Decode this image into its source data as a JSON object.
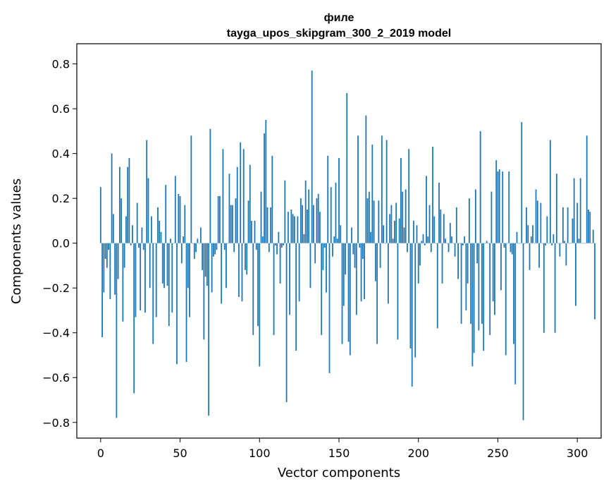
{
  "chart_data": {
    "type": "bar",
    "title_line1": "филе",
    "title_line2": "tayga_upos_skipgram_300_2_2019 model",
    "xlabel": "Vector components",
    "ylabel": "Components values",
    "xlim": [
      -15,
      315
    ],
    "ylim": [
      -0.87,
      0.89
    ],
    "xticks": [
      0,
      50,
      100,
      150,
      200,
      250,
      300
    ],
    "xtick_labels": [
      "0",
      "50",
      "100",
      "150",
      "200",
      "250",
      "300"
    ],
    "yticks": [
      -0.8,
      -0.6,
      -0.4,
      -0.2,
      0.0,
      0.2,
      0.4,
      0.6,
      0.8
    ],
    "ytick_labels": [
      "−0.8",
      "−0.6",
      "−0.4",
      "−0.2",
      "0.0",
      "0.2",
      "0.4",
      "0.6",
      "0.8"
    ],
    "bar_color": "#1f77b4",
    "grid": false,
    "values": [
      0.25,
      -0.42,
      -0.22,
      -0.07,
      -0.11,
      -0.03,
      -0.25,
      0.4,
      0.13,
      -0.23,
      -0.78,
      -0.16,
      0.34,
      0.2,
      -0.35,
      -0.11,
      0.12,
      0.34,
      0.38,
      -0.01,
      0.08,
      -0.67,
      -0.33,
      0.18,
      -0.02,
      -0.3,
      0.07,
      -0.03,
      -0.31,
      0.46,
      0.29,
      -0.2,
      0.12,
      -0.45,
      0.0,
      -0.33,
      0.16,
      0.1,
      0.05,
      -0.18,
      -0.2,
      0.26,
      -0.19,
      -0.37,
      0.02,
      -0.31,
      0.0,
      0.3,
      -0.54,
      0.22,
      0.21,
      -0.09,
      0.03,
      0.17,
      -0.53,
      -0.2,
      -0.33,
      0.48,
      0.0,
      -0.07,
      -0.04,
      0.02,
      0.0,
      0.07,
      -0.12,
      -0.43,
      -0.15,
      -0.19,
      -0.77,
      0.51,
      -0.22,
      -0.06,
      -0.05,
      -0.03,
      0.21,
      0.21,
      -0.27,
      0.42,
      -0.03,
      -0.2,
      0.0,
      0.31,
      0.17,
      0.17,
      -0.04,
      0.2,
      0.34,
      -0.24,
      0.45,
      -0.26,
      0.42,
      -0.12,
      -0.14,
      0.19,
      0.35,
      0.1,
      -0.41,
      0.1,
      -0.03,
      -0.37,
      -0.55,
      0.23,
      0.03,
      0.49,
      0.55,
      0.16,
      -0.04,
      0.16,
      0.39,
      -0.41,
      -0.01,
      -0.05,
      0.05,
      -0.18,
      -0.02,
      -0.01,
      0.28,
      -0.71,
      0.14,
      -0.32,
      0.15,
      0.13,
      0.12,
      -0.48,
      0.12,
      -0.26,
      0.2,
      0.17,
      0.04,
      0.28,
      0.15,
      0.24,
      -0.2,
      0.77,
      0.17,
      -0.09,
      0.2,
      0.22,
      0.14,
      -0.41,
      -0.12,
      -0.02,
      -0.22,
      0.39,
      -0.58,
      0.25,
      -0.06,
      0.03,
      0.27,
      0.02,
      0.38,
      0.08,
      -0.45,
      -0.28,
      -0.14,
      0.67,
      -0.44,
      -0.5,
      0.07,
      -0.05,
      -0.11,
      -0.32,
      0.48,
      -0.02,
      -0.26,
      -0.07,
      -0.25,
      0.57,
      0.2,
      0.23,
      0.05,
      0.44,
      0.19,
      -0.17,
      -0.45,
      0.19,
      -0.11,
      0.48,
      0.08,
      0.0,
      0.46,
      -0.27,
      0.13,
      0.17,
      0.02,
      0.1,
      0.18,
      -0.43,
      0.11,
      0.38,
      0.23,
      0.07,
      0.24,
      -0.04,
      0.42,
      -0.47,
      -0.64,
      0.1,
      -0.51,
      0.08,
      -0.18,
      -0.1,
      0.01,
      0.04,
      -0.01,
      0.3,
      0.03,
      0.17,
      -0.04,
      0.43,
      0.12,
      0.0,
      -0.38,
      0.27,
      0.15,
      -0.18,
      0.13,
      0.02,
      0.0,
      -0.04,
      0.09,
      0.03,
      0.0,
      -0.06,
      0.16,
      -0.16,
      0.0,
      -0.36,
      -0.01,
      0.03,
      -0.3,
      -0.18,
      0.2,
      -0.36,
      -0.55,
      -0.49,
      0.24,
      -0.09,
      -0.39,
      0.5,
      -0.36,
      -0.48,
      0.0,
      0.01,
      0.0,
      -0.41,
      0.23,
      -0.26,
      -0.32,
      0.37,
      0.32,
      0.33,
      -0.21,
      0.32,
      -0.02,
      -0.5,
      0.0,
      0.32,
      -0.04,
      -0.05,
      -0.45,
      -0.63,
      0.05,
      0.0,
      0.0,
      0.54,
      -0.79,
      0.0,
      0.16,
      0.08,
      -0.12,
      0.03,
      0.08,
      0.0,
      0.24,
      0.19,
      -0.11,
      0.18,
      0.0,
      -0.4,
      -0.01,
      0.12,
      0.0,
      0.46,
      -0.01,
      0.04,
      -0.4,
      0.31,
      0.0,
      -0.06,
      0.0,
      0.16,
      0.01,
      -0.1,
      0.16,
      0.0,
      0.0,
      0.11,
      0.29,
      -0.28,
      0.18,
      0.02,
      0.29,
      0.0,
      0.0,
      0.0,
      0.48,
      0.15,
      0.14,
      0.0,
      0.06,
      -0.34
    ]
  }
}
